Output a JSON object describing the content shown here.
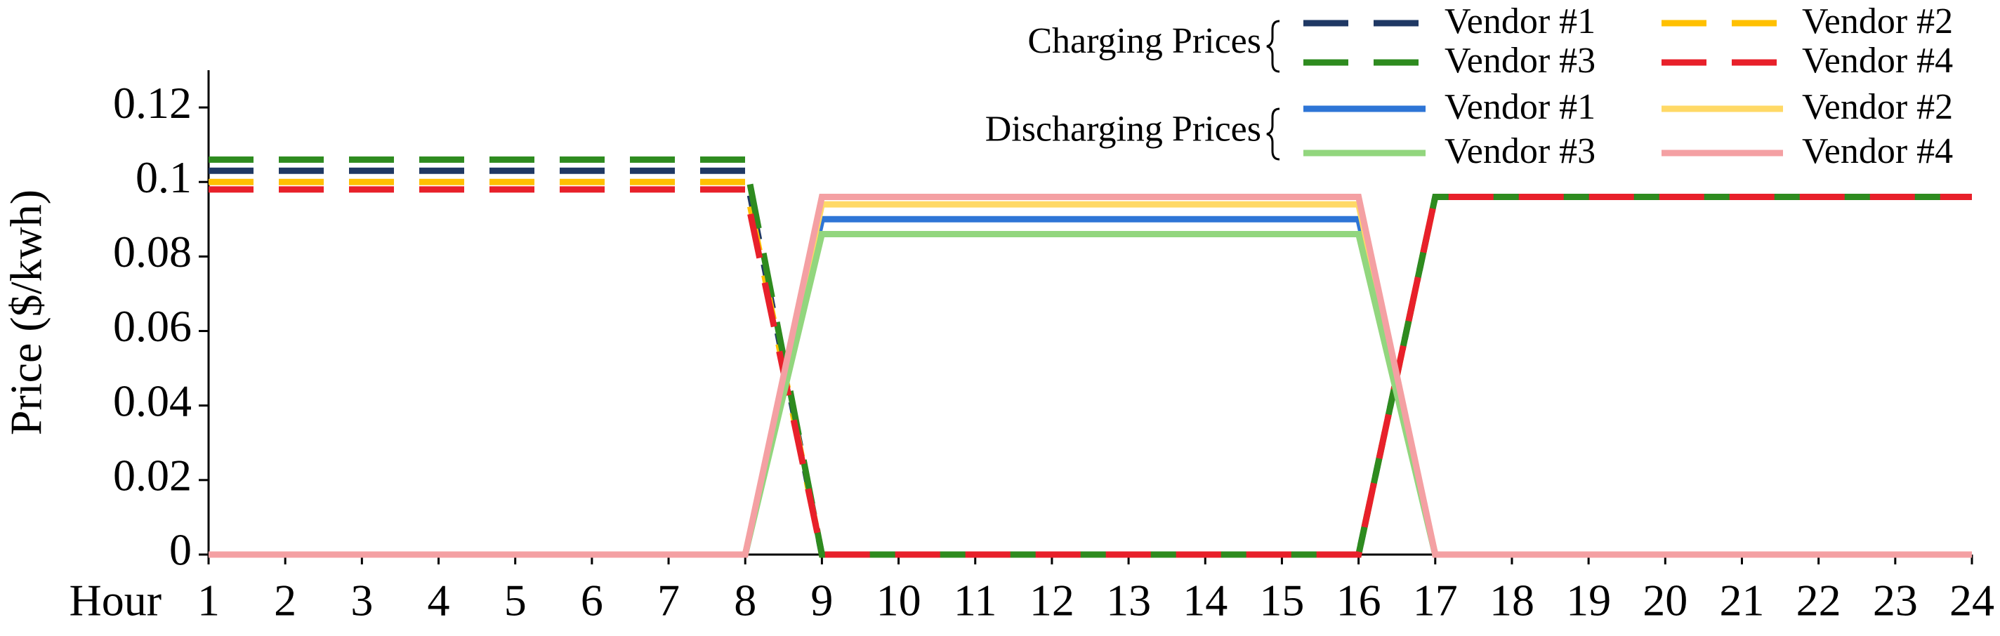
{
  "chart_data": {
    "type": "line",
    "y_label": "Price ($/kwh)",
    "x_label": "Hour",
    "x": [
      1,
      2,
      3,
      4,
      5,
      6,
      7,
      8,
      9,
      10,
      11,
      12,
      13,
      14,
      15,
      16,
      17,
      18,
      19,
      20,
      21,
      22,
      23,
      24
    ],
    "xlim": [
      1,
      24
    ],
    "xticks": [
      1,
      2,
      3,
      4,
      5,
      6,
      7,
      8,
      9,
      10,
      11,
      12,
      13,
      14,
      15,
      16,
      17,
      18,
      19,
      20,
      21,
      22,
      23,
      24
    ],
    "ylim": [
      0,
      0.13
    ],
    "yticks": [
      0,
      0.02,
      0.04,
      0.06,
      0.08,
      0.1,
      0.12
    ],
    "legend_groups": [
      "Charging Prices",
      "Discharging Prices"
    ],
    "series": [
      {
        "name": "Vendor #1",
        "group": 0,
        "dashed": true,
        "color": "#1f3864",
        "values": [
          0.103,
          0.103,
          0.103,
          0.103,
          0.103,
          0.103,
          0.103,
          0.103,
          0,
          0,
          0,
          0,
          0,
          0,
          0,
          0,
          0.096,
          0.096,
          0.096,
          0.096,
          0.096,
          0.096,
          0.096,
          0.096
        ]
      },
      {
        "name": "Vendor #2",
        "group": 0,
        "dashed": true,
        "color": "#ffc000",
        "values": [
          0.1,
          0.1,
          0.1,
          0.1,
          0.1,
          0.1,
          0.1,
          0.1,
          0,
          0,
          0,
          0,
          0,
          0,
          0,
          0,
          0.096,
          0.096,
          0.096,
          0.096,
          0.096,
          0.096,
          0.096,
          0.096
        ]
      },
      {
        "name": "Vendor #3",
        "group": 0,
        "dashed": true,
        "color": "#2e8b1f",
        "values": [
          0.106,
          0.106,
          0.106,
          0.106,
          0.106,
          0.106,
          0.106,
          0.106,
          0,
          0,
          0,
          0,
          0,
          0,
          0,
          0,
          0.096,
          0.096,
          0.096,
          0.096,
          0.096,
          0.096,
          0.096,
          0.096
        ]
      },
      {
        "name": "Vendor #4",
        "group": 0,
        "dashed": true,
        "color": "#e8202a",
        "values": [
          0.098,
          0.098,
          0.098,
          0.098,
          0.098,
          0.098,
          0.098,
          0.098,
          0,
          0,
          0,
          0,
          0,
          0,
          0,
          0,
          0.096,
          0.096,
          0.096,
          0.096,
          0.096,
          0.096,
          0.096,
          0.096
        ]
      },
      {
        "name": "Vendor #1",
        "group": 1,
        "dashed": false,
        "color": "#2e75d6",
        "values": [
          0,
          0,
          0,
          0,
          0,
          0,
          0,
          0,
          0.09,
          0.09,
          0.09,
          0.09,
          0.09,
          0.09,
          0.09,
          0.09,
          0,
          0,
          0,
          0,
          0,
          0,
          0,
          0
        ]
      },
      {
        "name": "Vendor #2",
        "group": 1,
        "dashed": false,
        "color": "#ffd966",
        "values": [
          0,
          0,
          0,
          0,
          0,
          0,
          0,
          0,
          0.094,
          0.094,
          0.094,
          0.094,
          0.094,
          0.094,
          0.094,
          0.094,
          0,
          0,
          0,
          0,
          0,
          0,
          0,
          0
        ]
      },
      {
        "name": "Vendor #3",
        "group": 1,
        "dashed": false,
        "color": "#92d67e",
        "values": [
          0,
          0,
          0,
          0,
          0,
          0,
          0,
          0,
          0.086,
          0.086,
          0.086,
          0.086,
          0.086,
          0.086,
          0.086,
          0.086,
          0,
          0,
          0,
          0,
          0,
          0,
          0,
          0
        ]
      },
      {
        "name": "Vendor #4",
        "group": 1,
        "dashed": false,
        "color": "#f4a0a3",
        "values": [
          0,
          0,
          0,
          0,
          0,
          0,
          0,
          0,
          0.096,
          0.096,
          0.096,
          0.096,
          0.096,
          0.096,
          0.096,
          0.096,
          0,
          0,
          0,
          0,
          0,
          0,
          0,
          0
        ]
      }
    ]
  }
}
